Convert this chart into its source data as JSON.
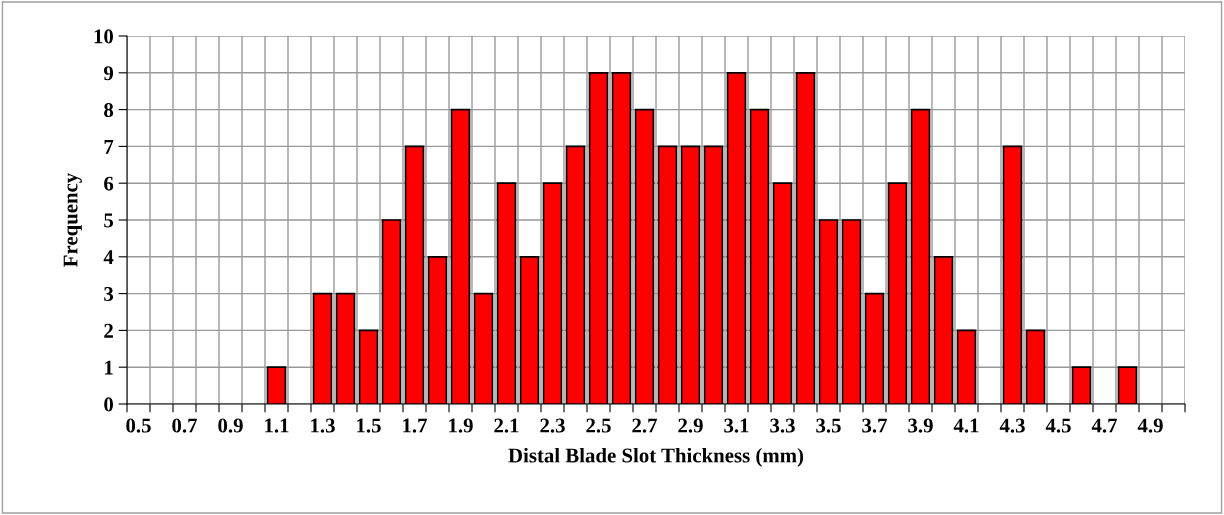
{
  "chart_data": {
    "type": "bar",
    "xlabel": "Distal Blade Slot Thickness (mm)",
    "ylabel": "Frequency",
    "categories": [
      "0.5",
      null,
      "0.7",
      null,
      "0.9",
      null,
      "1.1",
      null,
      "1.3",
      null,
      "1.5",
      null,
      "1.7",
      null,
      "1.9",
      null,
      "2.1",
      null,
      "2.3",
      null,
      "2.5",
      null,
      "2.7",
      null,
      "2.9",
      null,
      "3.1",
      null,
      "3.3",
      null,
      "3.5",
      null,
      "3.7",
      null,
      "3.9",
      null,
      "4.1",
      null,
      "4.3",
      null,
      "4.5",
      null,
      "4.7",
      null,
      "4.9",
      null
    ],
    "values": [
      0,
      0,
      0,
      0,
      0,
      0,
      1,
      0,
      3,
      3,
      2,
      5,
      7,
      4,
      8,
      3,
      6,
      4,
      6,
      7,
      9,
      9,
      8,
      7,
      7,
      7,
      9,
      8,
      6,
      9,
      5,
      5,
      3,
      6,
      8,
      4,
      2,
      0,
      7,
      2,
      0,
      1,
      0,
      1,
      0,
      0
    ],
    "color": "#ff0000",
    "ylim": [
      0,
      10
    ],
    "yticks": [
      0,
      1,
      2,
      3,
      4,
      5,
      6,
      7,
      8,
      9,
      10
    ],
    "grid": true
  }
}
